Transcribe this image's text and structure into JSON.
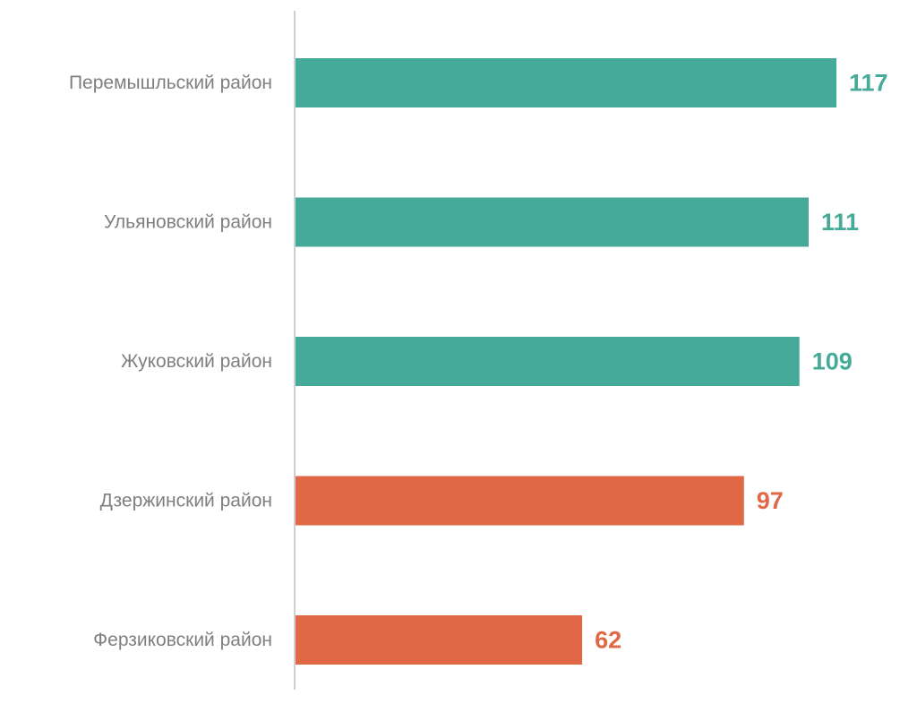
{
  "chart_data": {
    "type": "bar",
    "orientation": "horizontal",
    "categories": [
      "Перемышльский район",
      "Ульяновский район",
      "Жуковский район",
      "Дзержинский район",
      "Ферзиковский район"
    ],
    "values": [
      117,
      111,
      109,
      97,
      62
    ],
    "value_labels": [
      "117",
      "111",
      "109",
      "97",
      "62"
    ],
    "bar_colors": [
      "#45aa98",
      "#45aa98",
      "#45aa98",
      "#e06846",
      "#e06846"
    ],
    "title": "",
    "xlabel": "",
    "ylabel": "",
    "xlim": [
      0,
      117
    ],
    "grid": false,
    "legend": "none"
  },
  "colors": {
    "green": "#45aa98",
    "orange": "#e06846",
    "axis": "#bfbfbf",
    "category_text": "#7f7f7f"
  }
}
